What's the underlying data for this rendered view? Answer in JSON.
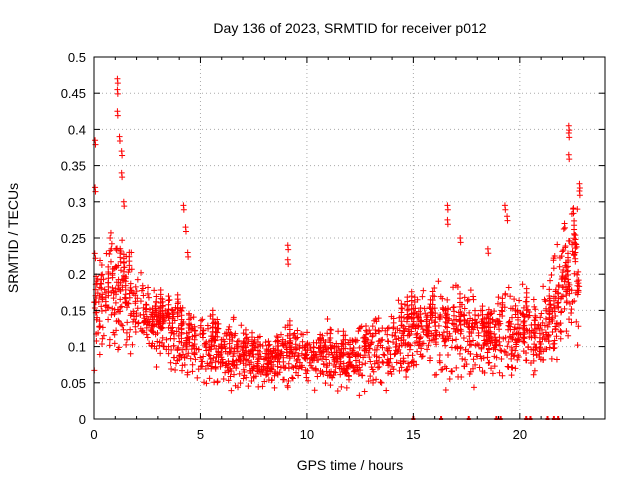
{
  "chart_data": {
    "type": "scatter",
    "title": "Day 136 of 2023, SRMTID for receiver p012",
    "xlabel": "GPS time / hours",
    "ylabel": "SRMTID / TECUs",
    "xlim": [
      0,
      24
    ],
    "ylim": [
      0,
      0.5
    ],
    "x_ticks": [
      0,
      5,
      10,
      15,
      20
    ],
    "x_tick_labels": [
      "0",
      "5",
      "10",
      "15",
      "20"
    ],
    "y_ticks": [
      0,
      0.05,
      0.1,
      0.15,
      0.2,
      0.25,
      0.3,
      0.35,
      0.4,
      0.45,
      0.5
    ],
    "y_tick_labels": [
      "0",
      "0.05",
      "0.1",
      "0.15",
      "0.2",
      "0.25",
      "0.3",
      "0.35",
      "0.4",
      "0.45",
      "0.5"
    ],
    "grid": true,
    "marker": "+",
    "series_color": "#ff0000",
    "envelope": {
      "x": [
        0,
        0.5,
        1,
        1.5,
        2,
        3,
        4,
        5,
        6,
        7,
        8,
        9,
        10,
        11,
        12,
        13,
        14,
        15,
        16,
        17,
        18,
        19,
        20,
        21,
        22,
        22.8
      ],
      "mean": [
        0.17,
        0.16,
        0.18,
        0.17,
        0.15,
        0.12,
        0.11,
        0.1,
        0.09,
        0.085,
        0.075,
        0.09,
        0.085,
        0.085,
        0.08,
        0.09,
        0.1,
        0.11,
        0.13,
        0.12,
        0.11,
        0.12,
        0.12,
        0.11,
        0.18,
        0.2
      ],
      "spread": [
        0.07,
        0.06,
        0.09,
        0.07,
        0.05,
        0.045,
        0.045,
        0.04,
        0.035,
        0.035,
        0.03,
        0.035,
        0.035,
        0.035,
        0.035,
        0.04,
        0.045,
        0.05,
        0.06,
        0.055,
        0.05,
        0.055,
        0.05,
        0.045,
        0.08,
        0.07
      ]
    },
    "peaks": [
      {
        "x": 0.05,
        "y": 0.385
      },
      {
        "x": 0.05,
        "y": 0.32
      },
      {
        "x": 1.1,
        "y": 0.47
      },
      {
        "x": 1.1,
        "y": 0.455
      },
      {
        "x": 1.1,
        "y": 0.425
      },
      {
        "x": 1.2,
        "y": 0.39
      },
      {
        "x": 1.3,
        "y": 0.37
      },
      {
        "x": 1.3,
        "y": 0.34
      },
      {
        "x": 1.4,
        "y": 0.3
      },
      {
        "x": 4.2,
        "y": 0.295
      },
      {
        "x": 4.3,
        "y": 0.265
      },
      {
        "x": 4.4,
        "y": 0.23
      },
      {
        "x": 9.1,
        "y": 0.24
      },
      {
        "x": 9.1,
        "y": 0.22
      },
      {
        "x": 16.6,
        "y": 0.295
      },
      {
        "x": 16.6,
        "y": 0.275
      },
      {
        "x": 17.2,
        "y": 0.25
      },
      {
        "x": 18.5,
        "y": 0.235
      },
      {
        "x": 19.3,
        "y": 0.295
      },
      {
        "x": 19.4,
        "y": 0.28
      },
      {
        "x": 22.3,
        "y": 0.405
      },
      {
        "x": 22.3,
        "y": 0.395
      },
      {
        "x": 22.3,
        "y": 0.365
      },
      {
        "x": 22.8,
        "y": 0.325
      },
      {
        "x": 22.8,
        "y": 0.315
      },
      {
        "x": 22.5,
        "y": 0.29
      },
      {
        "x": 22.1,
        "y": 0.27
      }
    ],
    "zero_points_x": [
      15.0,
      16.3,
      17.6,
      18.9,
      19.1,
      20.3,
      20.5,
      21.3,
      21.6,
      21.8
    ]
  }
}
